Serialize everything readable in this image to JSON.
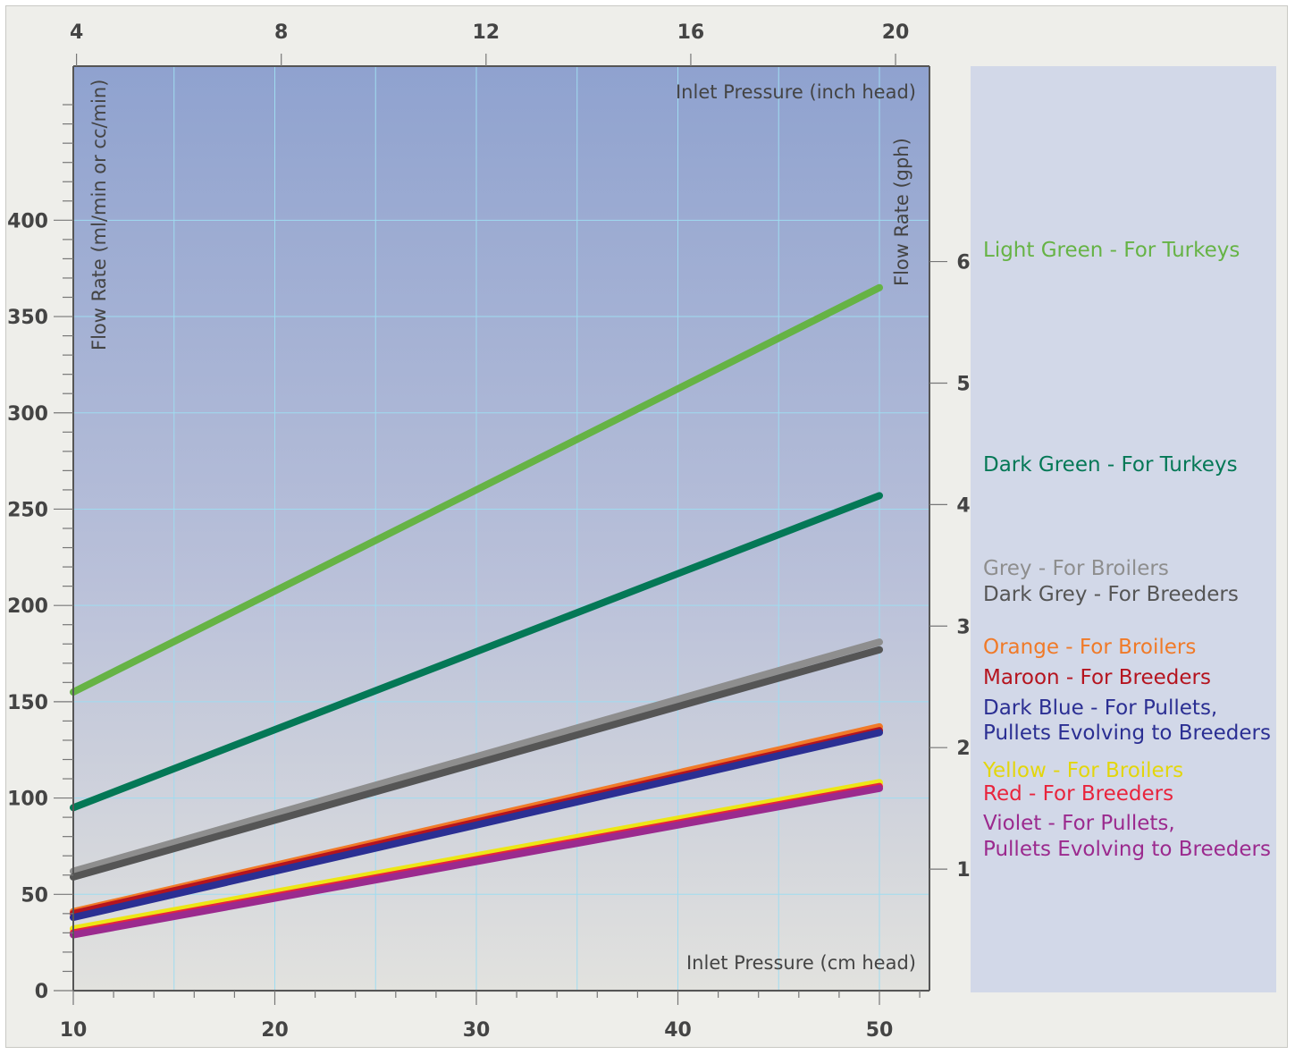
{
  "chart_data": {
    "type": "line",
    "x": [
      10,
      50
    ],
    "xlabel": "Inlet Pressure (cm head)",
    "xlim": [
      10,
      52
    ],
    "x_ticks": [
      10,
      20,
      30,
      40,
      50
    ],
    "ylabel": "Flow Rate (ml/min or cc/min)",
    "ylim": [
      0,
      480
    ],
    "y_ticks": [
      0,
      50,
      100,
      150,
      200,
      250,
      300,
      350,
      400
    ],
    "x2label": "Inlet Pressure (inch head)",
    "x2_ticks": [
      4,
      8,
      12,
      16,
      20
    ],
    "y2label": "Flow Rate (gph)",
    "y2_ticks": [
      1,
      2,
      3,
      4,
      5,
      6
    ],
    "grid": true,
    "series": [
      {
        "name": "Light Green - For Turkeys",
        "color": "#66b345",
        "values": [
          155,
          365
        ]
      },
      {
        "name": "Dark Green - For Turkeys",
        "color": "#047856",
        "values": [
          95,
          257
        ]
      },
      {
        "name": "Grey - For Broilers",
        "color": "#8e8e8e",
        "values": [
          62,
          181
        ]
      },
      {
        "name": "Dark Grey - For Breeders",
        "color": "#555555",
        "values": [
          59,
          177
        ]
      },
      {
        "name": "Orange - For Broilers",
        "color": "#f07a28",
        "values": [
          41,
          137
        ]
      },
      {
        "name": "Maroon - For Breeders",
        "color": "#b5141f",
        "values": [
          40,
          135
        ]
      },
      {
        "name": "Dark Blue - For Pullets,",
        "name2": "Pullets  Evolving to Breeders",
        "color": "#2b2f93",
        "values": [
          38,
          134
        ]
      },
      {
        "name": "Yellow - For Broilers",
        "color": "#ede616",
        "values": [
          32,
          108
        ]
      },
      {
        "name": "Red - For Breeders",
        "color": "#e8243c",
        "values": [
          30,
          106
        ]
      },
      {
        "name": "Violet - For Pullets,",
        "name2": "Pullets Evolving to Breeders",
        "color": "#9b2a8e",
        "values": [
          29,
          105
        ]
      }
    ]
  }
}
